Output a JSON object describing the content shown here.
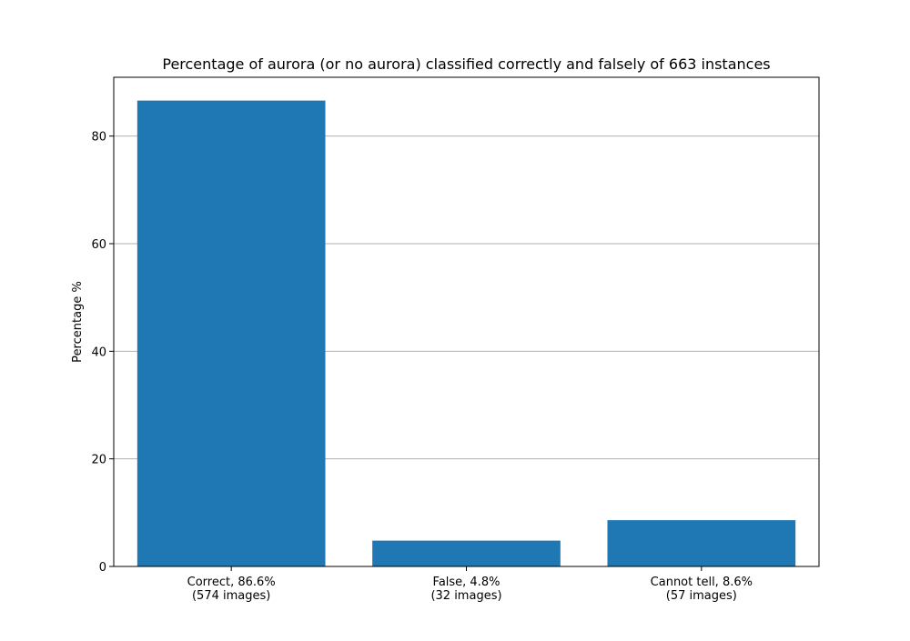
{
  "chart_data": {
    "type": "bar",
    "title": "Percentage of aurora (or no aurora) classified correctly and falsely of 663 instances",
    "xlabel": "",
    "ylabel": "Percentage %",
    "categories": [
      [
        "Correct, 86.6%",
        "(574 images)"
      ],
      [
        "False, 4.8%",
        "(32 images)"
      ],
      [
        "Cannot tell, 8.6%",
        "(57 images)"
      ]
    ],
    "values": [
      86.6,
      4.8,
      8.6
    ],
    "ylim": [
      0,
      90.93
    ],
    "yticks": [
      0,
      20,
      40,
      60,
      80
    ],
    "grid": "horizontal",
    "bar_color": "#1f77b4"
  }
}
